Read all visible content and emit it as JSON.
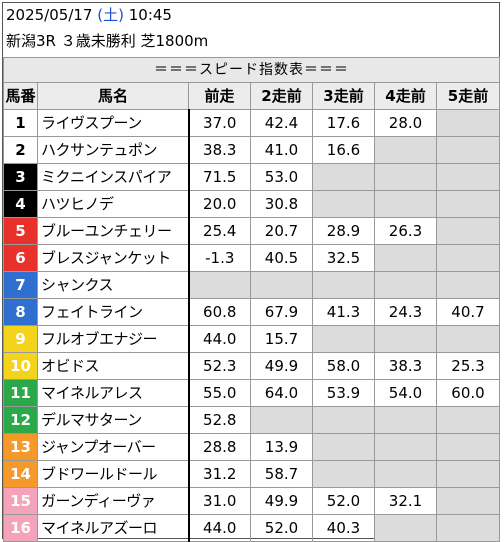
{
  "header": {
    "date": "2025/05/17",
    "weekday": "(土)",
    "time": "10:45",
    "race": "新潟3R ３歳未勝利 芝1800m"
  },
  "table": {
    "title": "＝＝＝スピード指数表＝＝＝",
    "columns": [
      "馬番",
      "馬名",
      "前走",
      "2走前",
      "3走前",
      "4走前",
      "5走前"
    ],
    "rows": [
      {
        "no": "1",
        "name": "ライヴスプーン",
        "vals": [
          "37.0",
          "42.4",
          "17.6",
          "28.0",
          ""
        ]
      },
      {
        "no": "2",
        "name": "ハクサンテュポン",
        "vals": [
          "38.3",
          "41.0",
          "16.6",
          "",
          ""
        ]
      },
      {
        "no": "3",
        "name": "ミクニインスパイア",
        "vals": [
          "71.5",
          "53.0",
          "",
          "",
          ""
        ]
      },
      {
        "no": "4",
        "name": "ハツヒノデ",
        "vals": [
          "20.0",
          "30.8",
          "",
          "",
          ""
        ]
      },
      {
        "no": "5",
        "name": "ブルーユンチェリー",
        "vals": [
          "25.4",
          "20.7",
          "28.9",
          "26.3",
          ""
        ]
      },
      {
        "no": "6",
        "name": "ブレスジャンケット",
        "vals": [
          "-1.3",
          "40.5",
          "32.5",
          "",
          ""
        ]
      },
      {
        "no": "7",
        "name": "シャンクス",
        "vals": [
          "",
          "",
          "",
          "",
          ""
        ]
      },
      {
        "no": "8",
        "name": "フェイトライン",
        "vals": [
          "60.8",
          "67.9",
          "41.3",
          "24.3",
          "40.7"
        ]
      },
      {
        "no": "9",
        "name": "フルオブエナジー",
        "vals": [
          "44.0",
          "15.7",
          "",
          "",
          ""
        ]
      },
      {
        "no": "10",
        "name": "オビドス",
        "vals": [
          "52.3",
          "49.9",
          "58.0",
          "38.3",
          "25.3"
        ]
      },
      {
        "no": "11",
        "name": "マイネルアレス",
        "vals": [
          "55.0",
          "64.0",
          "53.9",
          "54.0",
          "60.0"
        ]
      },
      {
        "no": "12",
        "name": "デルマサターン",
        "vals": [
          "52.8",
          "",
          "",
          "",
          ""
        ]
      },
      {
        "no": "13",
        "name": "ジャンプオーバー",
        "vals": [
          "28.8",
          "13.9",
          "",
          "",
          ""
        ]
      },
      {
        "no": "14",
        "name": "ブドワールドール",
        "vals": [
          "31.2",
          "58.7",
          "",
          "",
          ""
        ]
      },
      {
        "no": "15",
        "name": "ガーンディーヴァ",
        "vals": [
          "31.0",
          "49.9",
          "52.0",
          "32.1",
          ""
        ]
      },
      {
        "no": "16",
        "name": "マイネルアズーロ",
        "vals": [
          "44.0",
          "52.0",
          "40.3",
          "",
          ""
        ]
      }
    ]
  },
  "colors": {
    "waku1": "#ffffff",
    "waku2": "#000000",
    "waku3": "#e8312a",
    "waku4": "#2f6fd0",
    "waku5": "#f4d31c",
    "waku6": "#2aa84a",
    "waku7": "#f59a2a",
    "waku8": "#f5a3bb",
    "empty_cell": "#dcdcdd",
    "weekday": "#1a4fd6"
  }
}
